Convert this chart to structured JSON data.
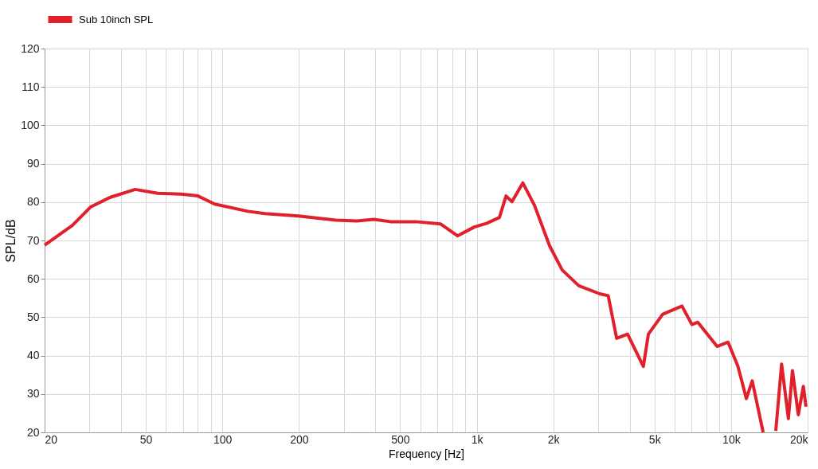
{
  "chart_data": {
    "type": "line",
    "xlabel": "Frequency [Hz]",
    "ylabel": "SPL/dB",
    "log": "x",
    "grid": true,
    "legend": "top left",
    "line_style": "solid",
    "marker": "none",
    "xlim": [
      20,
      20000
    ],
    "ylim": [
      20,
      120
    ],
    "xticks": [
      20,
      {
        "value": 30,
        "label": null
      },
      {
        "value": 40,
        "label": null
      },
      50,
      {
        "value": 60,
        "label": null
      },
      {
        "value": 70,
        "label": null
      },
      {
        "value": 80,
        "label": null
      },
      {
        "value": 90,
        "label": null
      },
      100,
      200,
      {
        "value": 300,
        "label": null
      },
      {
        "value": 400,
        "label": null
      },
      500,
      {
        "value": 600,
        "label": null
      },
      {
        "value": 700,
        "label": null
      },
      {
        "value": 800,
        "label": null
      },
      {
        "value": 900,
        "label": null
      },
      {
        "value": 1000,
        "label": "1k"
      },
      {
        "value": 2000,
        "label": "2k"
      },
      {
        "value": 3000,
        "label": null
      },
      {
        "value": 4000,
        "label": null
      },
      {
        "value": 5000,
        "label": "5k"
      },
      {
        "value": 6000,
        "label": null
      },
      {
        "value": 7000,
        "label": null
      },
      {
        "value": 8000,
        "label": null
      },
      {
        "value": 9000,
        "label": null
      },
      {
        "value": 10000,
        "label": "10k"
      },
      {
        "value": 20000,
        "label": "20k"
      }
    ],
    "yticks": [
      20,
      30,
      40,
      50,
      60,
      70,
      80,
      90,
      100,
      110,
      120
    ],
    "x": [
      20,
      25.7,
      30.3,
      36.1,
      45.4,
      55.7,
      68.8,
      80.1,
      93.2,
      126,
      147,
      199,
      280,
      338,
      394,
      458,
      575,
      722,
      840,
      978,
      1096,
      1228,
      1304,
      1376,
      1518,
      1688,
      1934,
      2168,
      2520,
      3049,
      3288,
      3549,
      3918,
      4519,
      4730,
      5386,
      6410,
      7014,
      7400,
      8810,
      9730,
      10640,
      11480,
      12110,
      13370,
      14200,
      14990,
      15800,
      16800,
      17430,
      18380,
      19240,
      19700
    ],
    "series": [
      {
        "name": "Sub 10inch SPL",
        "color": "#e0202a",
        "values": [
          68.8,
          73.9,
          78.7,
          81.2,
          83.3,
          82.3,
          82.1,
          81.6,
          79.5,
          77.6,
          77.0,
          76.4,
          75.3,
          75.1,
          75.5,
          74.9,
          74.9,
          74.3,
          71.2,
          73.5,
          74.5,
          76.0,
          81.6,
          80.1,
          85.0,
          79.1,
          68.6,
          62.3,
          58.2,
          56.1,
          55.6,
          44.5,
          45.6,
          37.2,
          45.6,
          50.8,
          52.9,
          48.1,
          48.7,
          42.4,
          43.5,
          37.2,
          28.8,
          33.4,
          20,
          null,
          20.4,
          37.8,
          23.6,
          36.1,
          24.6,
          32.0,
          26.7
        ]
      }
    ]
  }
}
